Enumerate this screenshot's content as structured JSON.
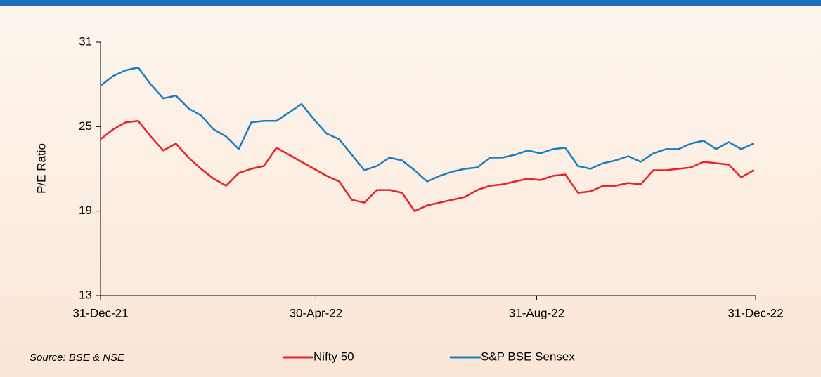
{
  "chart_data": {
    "type": "line",
    "y_label": "P/E Ratio",
    "source": "Source: BSE & NSE",
    "x": [
      "2021-12-31",
      "2022-01-07",
      "2022-01-14",
      "2022-01-21",
      "2022-01-28",
      "2022-02-04",
      "2022-02-11",
      "2022-02-18",
      "2022-02-25",
      "2022-03-04",
      "2022-03-11",
      "2022-03-18",
      "2022-03-25",
      "2022-04-01",
      "2022-04-08",
      "2022-04-15",
      "2022-04-22",
      "2022-04-29",
      "2022-05-06",
      "2022-05-13",
      "2022-05-20",
      "2022-05-27",
      "2022-06-03",
      "2022-06-10",
      "2022-06-17",
      "2022-06-24",
      "2022-07-01",
      "2022-07-08",
      "2022-07-15",
      "2022-07-22",
      "2022-07-29",
      "2022-08-05",
      "2022-08-12",
      "2022-08-19",
      "2022-08-26",
      "2022-09-02",
      "2022-09-09",
      "2022-09-16",
      "2022-09-23",
      "2022-09-30",
      "2022-10-07",
      "2022-10-14",
      "2022-10-21",
      "2022-10-28",
      "2022-11-04",
      "2022-11-11",
      "2022-11-18",
      "2022-11-25",
      "2022-12-02",
      "2022-12-09",
      "2022-12-16",
      "2022-12-23",
      "2022-12-30"
    ],
    "series": [
      {
        "name": "Nifty 50",
        "color": "#e8212b",
        "values": [
          24.1,
          24.8,
          25.3,
          25.4,
          24.3,
          23.3,
          23.8,
          22.8,
          22.0,
          21.3,
          20.8,
          21.7,
          22.0,
          22.2,
          23.5,
          23.0,
          22.5,
          22.0,
          21.5,
          21.1,
          19.8,
          19.6,
          20.5,
          20.5,
          20.3,
          19.0,
          19.4,
          19.6,
          19.8,
          20.0,
          20.5,
          20.8,
          20.9,
          21.1,
          21.3,
          21.2,
          21.5,
          21.6,
          20.3,
          20.4,
          20.8,
          20.8,
          21.0,
          20.9,
          21.9,
          21.9,
          22.0,
          22.1,
          22.5,
          22.4,
          22.3,
          21.4,
          21.9
        ]
      },
      {
        "name": "S&P BSE Sensex",
        "color": "#1a7fc1",
        "values": [
          27.9,
          28.6,
          29.0,
          29.2,
          28.0,
          27.0,
          27.2,
          26.3,
          25.8,
          24.8,
          24.3,
          23.4,
          25.3,
          25.4,
          25.4,
          26.0,
          26.6,
          25.5,
          24.5,
          24.1,
          23.0,
          21.9,
          22.2,
          22.8,
          22.6,
          21.9,
          21.1,
          21.5,
          21.8,
          22.0,
          22.1,
          22.8,
          22.8,
          23.0,
          23.3,
          23.1,
          23.4,
          23.5,
          22.2,
          22.0,
          22.4,
          22.6,
          22.9,
          22.5,
          23.1,
          23.4,
          23.4,
          23.8,
          24.0,
          23.4,
          23.9,
          23.4,
          23.8
        ]
      }
    ],
    "xlim": [
      "2021-12-31",
      "2022-12-31"
    ],
    "xticks": [
      {
        "value": "2021-12-31",
        "label": "31-Dec-21"
      },
      {
        "value": "2022-04-30",
        "label": "30-Apr-22"
      },
      {
        "value": "2022-08-31",
        "label": "31-Aug-22"
      },
      {
        "value": "2022-12-31",
        "label": "31-Dec-22"
      }
    ],
    "ylim": [
      13,
      31
    ],
    "yticks": [
      13,
      19,
      25,
      31
    ],
    "grid": false
  }
}
